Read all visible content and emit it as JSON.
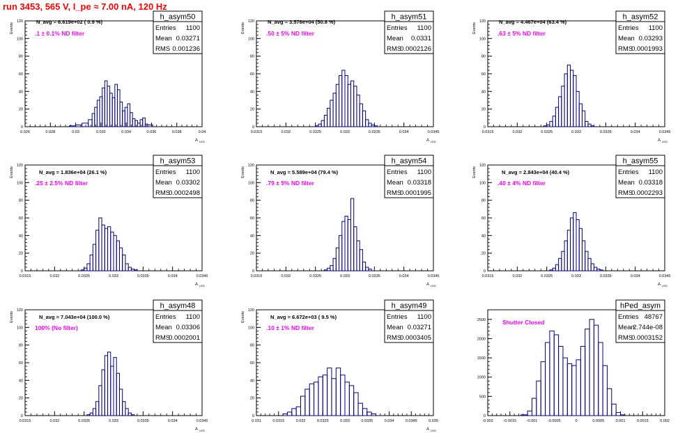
{
  "page": {
    "title": "run 3453,   565 V, I_pe ≈ 7.00 nA, 120 Hz"
  },
  "colors": {
    "histogram": "#000080",
    "note": "#ff00ff",
    "title": "#ff0000",
    "frame": "#000000"
  },
  "chart_data": [
    {
      "type": "bar",
      "name": "h_asym50",
      "note": ".1 ± 0.1% ND filter",
      "navg": "N_avg = 6.619e+02 ( 0.9 %)",
      "stats": {
        "entries": "1100",
        "mean": "0.03271",
        "rms": "0.001236"
      },
      "xlim": [
        0.026,
        0.04
      ],
      "ylim": [
        0,
        120
      ],
      "xticks": [
        "0.026",
        "0.028",
        "0.03",
        "0.032",
        "0.034",
        "0.036",
        "0.038",
        "0.04"
      ],
      "yticks": [
        "0",
        "20",
        "40",
        "60",
        "80",
        "100",
        "120"
      ],
      "ylabel": "Events",
      "xlabel": "A",
      "xlabel_sub": "LED",
      "bins": [
        [
          0.0295,
          0.03,
          1
        ],
        [
          0.03,
          0.0305,
          2
        ],
        [
          0.0305,
          0.031,
          4
        ],
        [
          0.031,
          0.0313,
          8
        ],
        [
          0.0313,
          0.0315,
          15
        ],
        [
          0.0315,
          0.0317,
          22
        ],
        [
          0.0317,
          0.0319,
          30
        ],
        [
          0.0319,
          0.0321,
          34
        ],
        [
          0.0321,
          0.0323,
          44
        ],
        [
          0.0323,
          0.0325,
          52
        ],
        [
          0.0325,
          0.0327,
          46
        ],
        [
          0.0327,
          0.0329,
          38
        ],
        [
          0.0329,
          0.0331,
          33
        ],
        [
          0.0331,
          0.0333,
          48
        ],
        [
          0.0333,
          0.0335,
          42
        ],
        [
          0.0335,
          0.0337,
          28
        ],
        [
          0.0337,
          0.0339,
          18
        ],
        [
          0.0339,
          0.0341,
          22
        ],
        [
          0.0341,
          0.0343,
          26
        ],
        [
          0.0343,
          0.0345,
          16
        ],
        [
          0.0345,
          0.0347,
          9
        ],
        [
          0.0347,
          0.0349,
          7
        ],
        [
          0.0349,
          0.0351,
          4
        ],
        [
          0.0351,
          0.0353,
          8
        ],
        [
          0.0353,
          0.0355,
          10
        ],
        [
          0.0355,
          0.0357,
          3
        ],
        [
          0.0357,
          0.0361,
          2
        ]
      ]
    },
    {
      "type": "bar",
      "name": "h_asym51",
      "note": ".50 ± 5% ND filter",
      "navg": "N_avg = 3.576e+04 (50.8 %)",
      "stats": {
        "entries": "1100",
        "mean": "0.0331",
        "rms": "0.0002126"
      },
      "xlim": [
        0.0315,
        0.0345
      ],
      "ylim": [
        0,
        120
      ],
      "xticks": [
        "0.0315",
        "0.032",
        "0.0325",
        "0.033",
        "0.0335",
        "0.034",
        "0.0345"
      ],
      "yticks": [
        "0",
        "20",
        "40",
        "60",
        "80",
        "100",
        "120"
      ],
      "ylabel": "Events",
      "xlabel": "A",
      "xlabel_sub": "LED",
      "bins": [
        [
          0.0325,
          0.03255,
          1
        ],
        [
          0.03255,
          0.0326,
          3
        ],
        [
          0.0326,
          0.03265,
          7
        ],
        [
          0.03265,
          0.0327,
          13
        ],
        [
          0.0327,
          0.03275,
          21
        ],
        [
          0.03275,
          0.0328,
          30
        ],
        [
          0.0328,
          0.03285,
          38
        ],
        [
          0.03285,
          0.0329,
          48
        ],
        [
          0.0329,
          0.03295,
          58
        ],
        [
          0.03295,
          0.033,
          64
        ],
        [
          0.033,
          0.03305,
          58
        ],
        [
          0.03305,
          0.0331,
          48
        ],
        [
          0.0331,
          0.03315,
          52
        ],
        [
          0.03315,
          0.0332,
          46
        ],
        [
          0.0332,
          0.03325,
          36
        ],
        [
          0.03325,
          0.0333,
          26
        ],
        [
          0.0333,
          0.03335,
          18
        ],
        [
          0.03335,
          0.0334,
          8
        ],
        [
          0.0334,
          0.03345,
          4
        ],
        [
          0.03345,
          0.0335,
          2
        ],
        [
          0.0335,
          0.03355,
          1
        ]
      ]
    },
    {
      "type": "bar",
      "name": "h_asym52",
      "note": ".63 ± 5% ND filter",
      "navg": "N_avg = 4.467e+04 (63.4 %)",
      "stats": {
        "entries": "1100",
        "mean": "0.03293",
        "rms": "0.0001993"
      },
      "xlim": [
        0.0315,
        0.0345
      ],
      "ylim": [
        0,
        120
      ],
      "xticks": [
        "0.0315",
        "0.032",
        "0.0325",
        "0.033",
        "0.0335",
        "0.034",
        "0.0345"
      ],
      "yticks": [
        "0",
        "20",
        "40",
        "60",
        "80",
        "100",
        "120"
      ],
      "ylabel": "Events",
      "xlabel": "A",
      "xlabel_sub": "LED",
      "bins": [
        [
          0.03245,
          0.0325,
          1
        ],
        [
          0.0325,
          0.03255,
          2
        ],
        [
          0.03255,
          0.0326,
          6
        ],
        [
          0.0326,
          0.03265,
          12
        ],
        [
          0.03265,
          0.0327,
          22
        ],
        [
          0.0327,
          0.03275,
          34
        ],
        [
          0.03275,
          0.0328,
          46
        ],
        [
          0.0328,
          0.03285,
          60
        ],
        [
          0.03285,
          0.0329,
          70
        ],
        [
          0.0329,
          0.03295,
          64
        ],
        [
          0.03295,
          0.033,
          58
        ],
        [
          0.033,
          0.03305,
          40
        ],
        [
          0.03305,
          0.0331,
          26
        ],
        [
          0.0331,
          0.03315,
          18
        ],
        [
          0.03315,
          0.0332,
          6
        ],
        [
          0.0332,
          0.03325,
          3
        ],
        [
          0.03325,
          0.0333,
          1
        ]
      ]
    },
    {
      "type": "bar",
      "name": "h_asym53",
      "note": ".25 ± 2.5% ND filter",
      "navg": "N_avg = 1.836e+04 (26.1 %)",
      "stats": {
        "entries": "1100",
        "mean": "0.03302",
        "rms": "0.0002498"
      },
      "xlim": [
        0.0315,
        0.0345
      ],
      "ylim": [
        0,
        120
      ],
      "xticks": [
        "0.0315",
        "0.032",
        "0.0325",
        "0.033",
        "0.0335",
        "0.034",
        "0.0345"
      ],
      "yticks": [
        "0",
        "20",
        "40",
        "60",
        "80",
        "100",
        "120"
      ],
      "ylabel": "Events",
      "xlabel": "A",
      "xlabel_sub": "LED",
      "bins": [
        [
          0.03245,
          0.0325,
          1
        ],
        [
          0.0325,
          0.03255,
          3
        ],
        [
          0.03255,
          0.0326,
          8
        ],
        [
          0.0326,
          0.03265,
          18
        ],
        [
          0.03265,
          0.0327,
          30
        ],
        [
          0.0327,
          0.03275,
          46
        ],
        [
          0.03275,
          0.0328,
          60
        ],
        [
          0.0328,
          0.03285,
          52
        ],
        [
          0.03285,
          0.0329,
          48
        ],
        [
          0.0329,
          0.03295,
          50
        ],
        [
          0.03295,
          0.033,
          44
        ],
        [
          0.033,
          0.03305,
          40
        ],
        [
          0.03305,
          0.0331,
          34
        ],
        [
          0.0331,
          0.03315,
          26
        ],
        [
          0.03315,
          0.0332,
          18
        ],
        [
          0.0332,
          0.03325,
          8
        ],
        [
          0.03325,
          0.0333,
          4
        ],
        [
          0.0333,
          0.03335,
          2
        ],
        [
          0.03335,
          0.0334,
          1
        ]
      ]
    },
    {
      "type": "bar",
      "name": "h_asym54",
      "note": ".79 ± 5% ND filter",
      "navg": "N_avg = 5.589e+04 (79.4 %)",
      "stats": {
        "entries": "1100",
        "mean": "0.03318",
        "rms": "0.0001995"
      },
      "xlim": [
        0.0315,
        0.0345
      ],
      "ylim": [
        0,
        120
      ],
      "xticks": [
        "0.0315",
        "0.032",
        "0.0325",
        "0.033",
        "0.0335",
        "0.034",
        "0.0345"
      ],
      "yticks": [
        "0",
        "20",
        "40",
        "60",
        "80",
        "100",
        "120"
      ],
      "ylabel": "Events",
      "xlabel": "A",
      "xlabel_sub": "LED",
      "bins": [
        [
          0.03265,
          0.0327,
          1
        ],
        [
          0.0327,
          0.03275,
          3
        ],
        [
          0.03275,
          0.0328,
          6
        ],
        [
          0.0328,
          0.03285,
          14
        ],
        [
          0.03285,
          0.0329,
          26
        ],
        [
          0.0329,
          0.03295,
          40
        ],
        [
          0.03295,
          0.033,
          56
        ],
        [
          0.033,
          0.03305,
          62
        ],
        [
          0.03305,
          0.0331,
          58
        ],
        [
          0.0331,
          0.03315,
          82
        ],
        [
          0.03315,
          0.0332,
          50
        ],
        [
          0.0332,
          0.03325,
          34
        ],
        [
          0.03325,
          0.0333,
          24
        ],
        [
          0.0333,
          0.03335,
          10
        ],
        [
          0.03335,
          0.0334,
          4
        ],
        [
          0.0334,
          0.03345,
          2
        ]
      ]
    },
    {
      "type": "bar",
      "name": "h_asym55",
      "note": ".40 ± 4% ND filter",
      "navg": "N_avg = 2.843e+04 (40.4 %)",
      "stats": {
        "entries": "1100",
        "mean": "0.03318",
        "rms": "0.0002293"
      },
      "xlim": [
        0.0315,
        0.0345
      ],
      "ylim": [
        0,
        120
      ],
      "xticks": [
        "0.0315",
        "0.032",
        "0.0325",
        "0.033",
        "0.0335",
        "0.034",
        "0.0345"
      ],
      "yticks": [
        "0",
        "20",
        "40",
        "60",
        "80",
        "100",
        "120"
      ],
      "ylabel": "Events",
      "xlabel": "A",
      "xlabel_sub": "LED",
      "bins": [
        [
          0.03255,
          0.0326,
          1
        ],
        [
          0.0326,
          0.03265,
          3
        ],
        [
          0.03265,
          0.0327,
          7
        ],
        [
          0.0327,
          0.03275,
          14
        ],
        [
          0.03275,
          0.0328,
          22
        ],
        [
          0.0328,
          0.03285,
          34
        ],
        [
          0.03285,
          0.0329,
          46
        ],
        [
          0.0329,
          0.03295,
          60
        ],
        [
          0.03295,
          0.033,
          66
        ],
        [
          0.033,
          0.03305,
          58
        ],
        [
          0.03305,
          0.0331,
          48
        ],
        [
          0.0331,
          0.03315,
          34
        ],
        [
          0.03315,
          0.0332,
          22
        ],
        [
          0.0332,
          0.03325,
          14
        ],
        [
          0.03325,
          0.0333,
          8
        ],
        [
          0.0333,
          0.03335,
          4
        ],
        [
          0.03335,
          0.0334,
          2
        ],
        [
          0.0334,
          0.03345,
          1
        ]
      ]
    },
    {
      "type": "bar",
      "name": "h_asym48",
      "note": "100% (No filter)",
      "navg": "N_avg = 7.043e+04 (100.0 %)",
      "stats": {
        "entries": "1100",
        "mean": "0.03306",
        "rms": "0.0002001"
      },
      "xlim": [
        0.0315,
        0.0345
      ],
      "ylim": [
        0,
        120
      ],
      "xticks": [
        "0.0315",
        "0.032",
        "0.0325",
        "0.033",
        "0.0335",
        "0.034",
        "0.0345"
      ],
      "yticks": [
        "0",
        "20",
        "40",
        "60",
        "80",
        "100",
        "120"
      ],
      "ylabel": "Events",
      "xlabel": "A",
      "xlabel_sub": "LED",
      "bins": [
        [
          0.03255,
          0.0326,
          1
        ],
        [
          0.0326,
          0.03265,
          3
        ],
        [
          0.03265,
          0.0327,
          8
        ],
        [
          0.0327,
          0.03275,
          16
        ],
        [
          0.03275,
          0.0328,
          34
        ],
        [
          0.0328,
          0.03285,
          52
        ],
        [
          0.03285,
          0.0329,
          68
        ],
        [
          0.0329,
          0.03295,
          72
        ],
        [
          0.03295,
          0.033,
          56
        ],
        [
          0.033,
          0.03305,
          66
        ],
        [
          0.03305,
          0.0331,
          48
        ],
        [
          0.0331,
          0.03315,
          30
        ],
        [
          0.03315,
          0.0332,
          16
        ],
        [
          0.0332,
          0.03325,
          8
        ],
        [
          0.03325,
          0.0333,
          3
        ],
        [
          0.0333,
          0.03335,
          1
        ]
      ]
    },
    {
      "type": "bar",
      "name": "h_asym49",
      "note": ".10 ± 1% ND filter",
      "navg": "N_avg = 6.672e+03 ( 9.5 %)",
      "stats": {
        "entries": "1100",
        "mean": "0.03271",
        "rms": "0.0003405"
      },
      "xlim": [
        0.031,
        0.035
      ],
      "ylim": [
        0,
        120
      ],
      "xticks": [
        "0.031",
        "0.0315",
        "0.032",
        "0.0325",
        "0.033",
        "0.0335",
        "0.034",
        "0.0345",
        "0.035"
      ],
      "yticks": [
        "0",
        "20",
        "40",
        "60",
        "80",
        "100",
        "120"
      ],
      "ylabel": "Events",
      "xlabel": "A",
      "xlabel_sub": "LED",
      "bins": [
        [
          0.0316,
          0.0317,
          2
        ],
        [
          0.0317,
          0.0318,
          4
        ],
        [
          0.0318,
          0.0319,
          8
        ],
        [
          0.0319,
          0.032,
          10
        ],
        [
          0.032,
          0.0321,
          22
        ],
        [
          0.0321,
          0.0322,
          30
        ],
        [
          0.0322,
          0.0323,
          36
        ],
        [
          0.0323,
          0.0324,
          38
        ],
        [
          0.0324,
          0.0325,
          44
        ],
        [
          0.0325,
          0.0326,
          46
        ],
        [
          0.0326,
          0.0327,
          54
        ],
        [
          0.0327,
          0.0328,
          42
        ],
        [
          0.0328,
          0.0329,
          54
        ],
        [
          0.0329,
          0.033,
          46
        ],
        [
          0.033,
          0.0331,
          38
        ],
        [
          0.0331,
          0.0332,
          34
        ],
        [
          0.0332,
          0.0333,
          26
        ],
        [
          0.0333,
          0.0334,
          14
        ],
        [
          0.0334,
          0.0335,
          8
        ],
        [
          0.0335,
          0.0336,
          4
        ],
        [
          0.0336,
          0.0337,
          2
        ]
      ]
    },
    {
      "type": "bar",
      "name": "hPed_asym",
      "note": "Shutter Closed",
      "navg": "",
      "stats": {
        "entries": "48767",
        "mean": "2.744e-08",
        "rms": "0.0003152"
      },
      "xlim": [
        -0.002,
        0.002
      ],
      "ylim": [
        0,
        2750
      ],
      "xticks": [
        "-0.002",
        "-0.0015",
        "-0.001",
        "-0.0005",
        "0",
        "0.0005",
        "0.001",
        "0.0015",
        "0.002"
      ],
      "yticks": [
        "0",
        "500",
        "1000",
        "1500",
        "2000",
        "2500"
      ],
      "ylabel": "",
      "xlabel": "",
      "xlabel_sub": "",
      "bins": [
        [
          -0.00125,
          -0.0011,
          20
        ],
        [
          -0.0011,
          -0.001,
          120
        ],
        [
          -0.001,
          -0.0009,
          450
        ],
        [
          -0.0009,
          -0.0008,
          900
        ],
        [
          -0.0008,
          -0.0007,
          1400
        ],
        [
          -0.0007,
          -0.0006,
          1900
        ],
        [
          -0.0006,
          -0.0005,
          2200
        ],
        [
          -0.0005,
          -0.0004,
          2100
        ],
        [
          -0.0004,
          -0.0003,
          1800
        ],
        [
          -0.0003,
          -0.0002,
          1500
        ],
        [
          -0.0002,
          -0.0001,
          1350
        ],
        [
          -0.0001,
          0.0,
          1300
        ],
        [
          0.0,
          0.0001,
          1450
        ],
        [
          0.0001,
          0.0002,
          1800
        ],
        [
          0.0002,
          0.0003,
          2250
        ],
        [
          0.0003,
          0.0004,
          2500
        ],
        [
          0.0004,
          0.0005,
          2350
        ],
        [
          0.0005,
          0.0006,
          1900
        ],
        [
          0.0006,
          0.0007,
          1300
        ],
        [
          0.0007,
          0.0008,
          700
        ],
        [
          0.0008,
          0.0009,
          300
        ],
        [
          0.0009,
          0.001,
          80
        ],
        [
          0.001,
          0.0011,
          20
        ]
      ]
    }
  ]
}
